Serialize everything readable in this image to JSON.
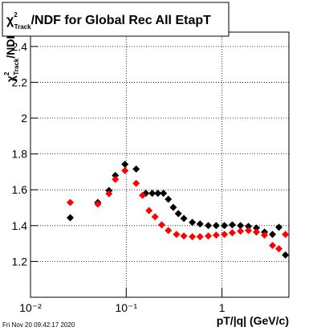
{
  "chart_data": {
    "type": "scatter",
    "title": {
      "symbol": "χ",
      "sup": "2",
      "sub": "Track",
      "text": "/NDF for Global Rec All EtapT"
    },
    "y_label": {
      "symbol": "χ",
      "sup": "2",
      "sub": "Track",
      "text": "/NDF"
    },
    "x_label": "pT/|q| (GeV/c)",
    "footer": "Fri Nov 20 09:42:17 2020",
    "xlog": true,
    "grid": true,
    "xlim": [
      0.01,
      5
    ],
    "ylim": [
      1.0,
      2.48
    ],
    "xticks": [
      {
        "value": 0.01,
        "label": "10⁻²"
      },
      {
        "value": 0.1,
        "label": "10⁻¹"
      },
      1
    ],
    "yticks": [
      1.2,
      1.4,
      1.6,
      1.8,
      2,
      2.2,
      2.4
    ],
    "series": [
      {
        "color": "#000000",
        "x": [
          0.026,
          0.0505,
          0.066,
          0.077,
          0.097,
          0.127,
          0.16,
          0.187,
          0.214,
          0.245,
          0.275,
          0.31,
          0.35,
          0.4,
          0.49,
          0.59,
          0.72,
          0.87,
          1.06,
          1.28,
          1.56,
          1.89,
          2.29,
          2.78,
          3.37,
          3.93,
          4.6
        ],
        "values": [
          1.444,
          1.529,
          1.596,
          1.68,
          1.742,
          1.716,
          1.58,
          1.58,
          1.58,
          1.58,
          1.547,
          1.502,
          1.467,
          1.44,
          1.418,
          1.409,
          1.4,
          1.4,
          1.4,
          1.404,
          1.4,
          1.396,
          1.387,
          1.364,
          1.351,
          1.391,
          1.236
        ]
      },
      {
        "color": "#ff0000",
        "x": [
          0.026,
          0.0505,
          0.066,
          0.077,
          0.097,
          0.127,
          0.148,
          0.173,
          0.2,
          0.235,
          0.275,
          0.335,
          0.4,
          0.49,
          0.59,
          0.72,
          0.87,
          1.06,
          1.28,
          1.56,
          1.89,
          2.29,
          2.78,
          3.37,
          3.93,
          4.6
        ],
        "values": [
          1.529,
          1.52,
          1.578,
          1.658,
          1.707,
          1.636,
          1.569,
          1.484,
          1.449,
          1.404,
          1.373,
          1.351,
          1.342,
          1.338,
          1.338,
          1.342,
          1.347,
          1.351,
          1.36,
          1.369,
          1.373,
          1.364,
          1.347,
          1.289,
          1.271,
          1.351
        ]
      }
    ]
  }
}
